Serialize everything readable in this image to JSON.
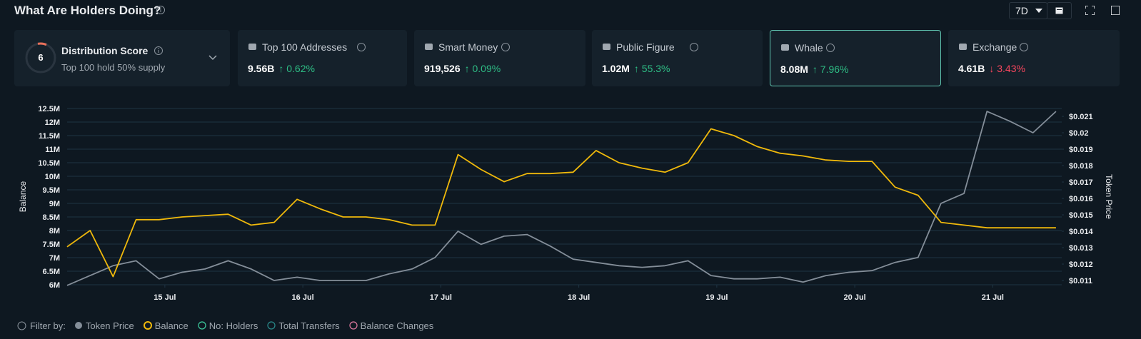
{
  "header": {
    "title": "What Are Holders Doing?",
    "range": "7D"
  },
  "distribution": {
    "score": 6,
    "label": "Distribution Score",
    "note": "Top 100 hold 50% supply"
  },
  "cards": [
    {
      "label": "Top 100 Addresses",
      "value": "9.56B",
      "change": "↑ 0.62%",
      "trend": "up"
    },
    {
      "label": "Smart Money",
      "value": "919,526",
      "change": "↑ 0.09%",
      "trend": "up"
    },
    {
      "label": "Public Figure",
      "value": "1.02M",
      "change": "↑ 55.3%",
      "trend": "up"
    },
    {
      "label": "Whale",
      "value": "8.08M",
      "change": "↑ 7.96%",
      "trend": "up",
      "selected": true
    },
    {
      "label": "Exchange",
      "value": "4.61B",
      "change": "↓ 3.43%",
      "trend": "down"
    }
  ],
  "chart_data": {
    "type": "line",
    "ylabel": "Balance",
    "y2label": "Token Price",
    "grid": true,
    "x": [
      0,
      4,
      8,
      12,
      16,
      20,
      24,
      28,
      32,
      36,
      40,
      44,
      48,
      52,
      56,
      60,
      64,
      68,
      72,
      76,
      80,
      84,
      88,
      92,
      96,
      100,
      104,
      108,
      112,
      116,
      120,
      124,
      128,
      132,
      136,
      140,
      144,
      148,
      152,
      156,
      160,
      164,
      168,
      172
    ],
    "xlim": [
      0,
      173
    ],
    "xticks": [
      {
        "value": 17,
        "label": "15 Jul"
      },
      {
        "value": 41,
        "label": "16 Jul"
      },
      {
        "value": 65,
        "label": "17 Jul"
      },
      {
        "value": 89,
        "label": "18 Jul"
      },
      {
        "value": 113,
        "label": "19 Jul"
      },
      {
        "value": 137,
        "label": "20 Jul"
      },
      {
        "value": 161,
        "label": "21 Jul"
      }
    ],
    "ylim": [
      6000000,
      12500000
    ],
    "yticks": [
      {
        "value": 6000000,
        "label": "6M"
      },
      {
        "value": 6500000,
        "label": "6.5M"
      },
      {
        "value": 7000000,
        "label": "7M"
      },
      {
        "value": 7500000,
        "label": "7.5M"
      },
      {
        "value": 8000000,
        "label": "8M"
      },
      {
        "value": 8500000,
        "label": "8.5M"
      },
      {
        "value": 9000000,
        "label": "9M"
      },
      {
        "value": 9500000,
        "label": "9.5M"
      },
      {
        "value": 10000000,
        "label": "10M"
      },
      {
        "value": 10500000,
        "label": "10.5M"
      },
      {
        "value": 11000000,
        "label": "11M"
      },
      {
        "value": 11500000,
        "label": "11.5M"
      },
      {
        "value": 12000000,
        "label": "12M"
      },
      {
        "value": 12500000,
        "label": "12.5M"
      }
    ],
    "y2lim": [
      0.01074,
      0.02148
    ],
    "y2ticks": [
      {
        "value": 0.011,
        "label": "$0.011"
      },
      {
        "value": 0.012,
        "label": "$0.012"
      },
      {
        "value": 0.013,
        "label": "$0.013"
      },
      {
        "value": 0.014,
        "label": "$0.014"
      },
      {
        "value": 0.015,
        "label": "$0.015"
      },
      {
        "value": 0.016,
        "label": "$0.016"
      },
      {
        "value": 0.017,
        "label": "$0.017"
      },
      {
        "value": 0.018,
        "label": "$0.018"
      },
      {
        "value": 0.019,
        "label": "$0.019"
      },
      {
        "value": 0.02,
        "label": "$0.02"
      },
      {
        "value": 0.021,
        "label": "$0.021"
      }
    ],
    "series": [
      {
        "name": "Token Price",
        "color": "#848e99",
        "axis": "y2",
        "values": [
          0.0107,
          0.0113,
          0.0119,
          0.0122,
          0.0111,
          0.0115,
          0.0117,
          0.0122,
          0.0117,
          0.011,
          0.0112,
          0.011,
          0.011,
          0.011,
          0.0114,
          0.0117,
          0.0124,
          0.014,
          0.0132,
          0.0137,
          0.0138,
          0.0131,
          0.0123,
          0.0121,
          0.0119,
          0.0118,
          0.0119,
          0.0122,
          0.0113,
          0.0111,
          0.0111,
          0.0112,
          0.0109,
          0.0113,
          0.0115,
          0.0116,
          0.0121,
          0.0124,
          0.0157,
          0.0163,
          0.0213,
          0.0207,
          0.02,
          0.0213
        ]
      },
      {
        "name": "Balance",
        "color": "#f0b90b",
        "axis": "y",
        "values": [
          7400000,
          8000000,
          6300000,
          8400000,
          8400000,
          8500000,
          8550000,
          8600000,
          8200000,
          8300000,
          9150000,
          8800000,
          8500000,
          8500000,
          8400000,
          8200000,
          8200000,
          10800000,
          10250000,
          9800000,
          10100000,
          10100000,
          10150000,
          10950000,
          10500000,
          10300000,
          10150000,
          10500000,
          11750000,
          11500000,
          11100000,
          10850000,
          10750000,
          10600000,
          10550000,
          10550000,
          9600000,
          9300000,
          8300000,
          8200000,
          8100000,
          8100000,
          8100000,
          8100000
        ]
      }
    ]
  },
  "filter": {
    "label": "Filter by:",
    "others": [
      "No: Holders",
      "Total Transfers",
      "Balance Changes"
    ]
  }
}
